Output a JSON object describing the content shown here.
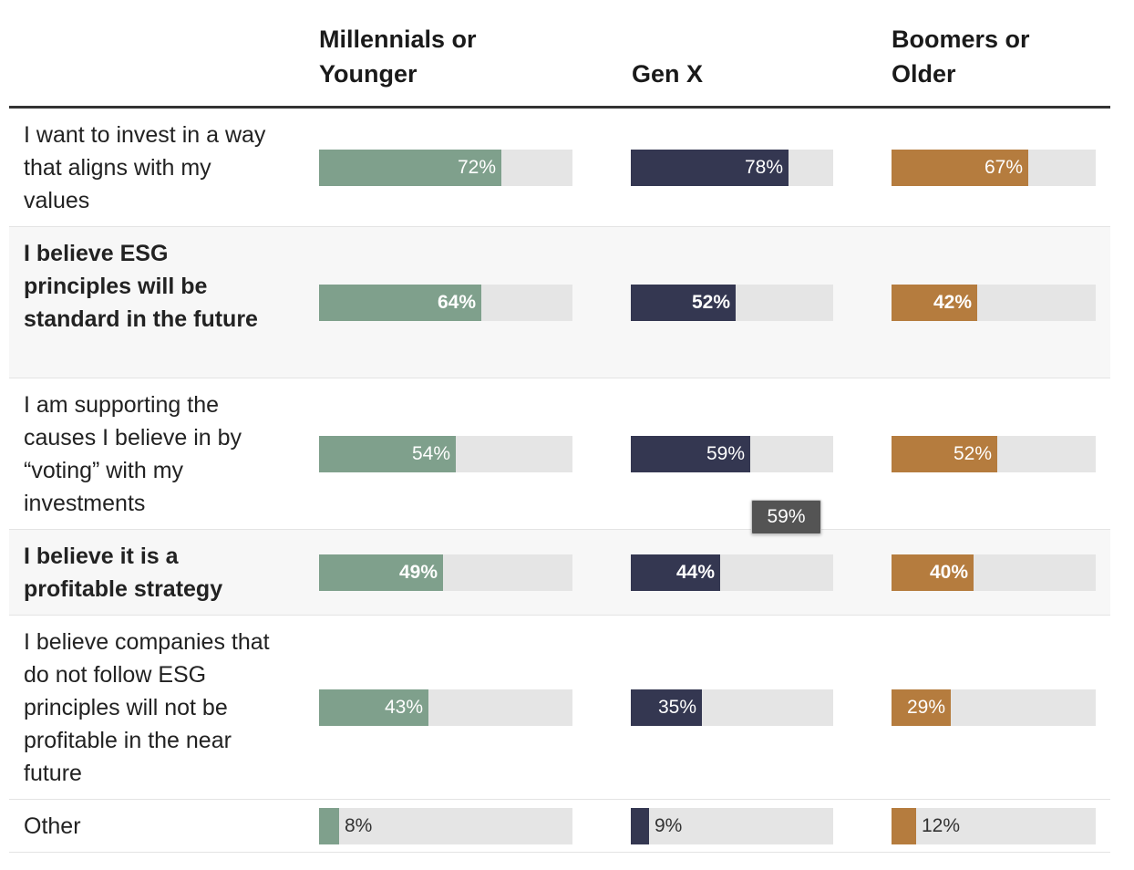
{
  "chart_data": {
    "type": "bar",
    "layout": "small-multiples-horizontal",
    "series": [
      {
        "name": "Millennials or\nYounger",
        "color": "#7fa08c",
        "values": [
          72,
          64,
          54,
          49,
          43,
          8
        ]
      },
      {
        "name": "Gen X",
        "color": "#343751",
        "values": [
          78,
          52,
          59,
          44,
          35,
          9
        ]
      },
      {
        "name": "Boomers or\nOlder",
        "color": "#b57c3e",
        "values": [
          67,
          42,
          52,
          40,
          29,
          12
        ]
      }
    ],
    "categories": [
      "I want to invest in a way that aligns with my values",
      "I believe ESG principles will be standard in the future",
      "I am supporting the causes I believe in by “voting” with my investments",
      "I believe it is a profitable strategy",
      "I believe companies that do not follow ESG principles will not be profitable in the near future",
      "Other"
    ],
    "value_suffix": "%",
    "bold_rows": [
      1,
      3
    ],
    "xlim": [
      0,
      100
    ],
    "track_color": "#e5e5e5"
  },
  "tooltip": {
    "text": "59%"
  }
}
